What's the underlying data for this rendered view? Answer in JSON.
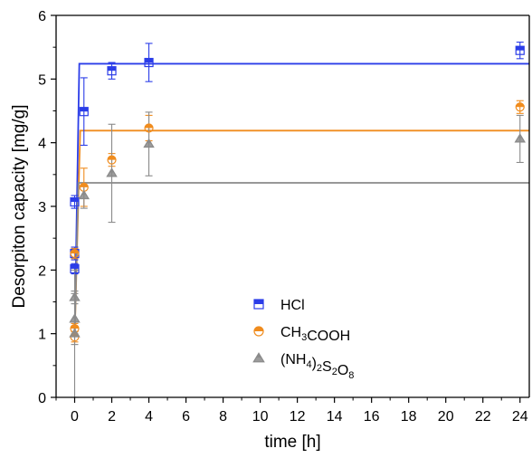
{
  "chart_data": {
    "type": "scatter",
    "title": "",
    "xlabel": "time [h]",
    "ylabel": "Desorpiton capacity [mg/g]",
    "xlim": [
      -1,
      24.5
    ],
    "ylim": [
      0,
      6
    ],
    "xticks": [
      0,
      2,
      4,
      6,
      8,
      10,
      12,
      14,
      16,
      18,
      20,
      22,
      24
    ],
    "yticks": [
      0,
      1,
      2,
      3,
      4,
      5,
      6
    ],
    "grid": false,
    "legend_placement": "bottom-center",
    "series": [
      {
        "name": "HCl",
        "legend_parts": [
          {
            "t": "HCl",
            "sub": false
          }
        ],
        "marker": "square",
        "color": "#2b3de8",
        "points": [
          {
            "x": 0,
            "y": 2.02,
            "err": 0.08
          },
          {
            "x": 0,
            "y": 2.26,
            "err": 0.1
          },
          {
            "x": 0,
            "y": 3.07,
            "err": 0.1
          },
          {
            "x": 0.5,
            "y": 4.49,
            "err": 0.53
          },
          {
            "x": 2,
            "y": 5.13,
            "err": 0.13
          },
          {
            "x": 4,
            "y": 5.26,
            "err": 0.3
          },
          {
            "x": 24,
            "y": 5.45,
            "err": 0.13
          }
        ],
        "fit": [
          {
            "x": 0,
            "y": 0.95
          },
          {
            "x": 0.25,
            "y": 5.24
          },
          {
            "x": 24.5,
            "y": 5.24
          }
        ]
      },
      {
        "name": "CH3COOH",
        "legend_parts": [
          {
            "t": "CH",
            "sub": false
          },
          {
            "t": "3",
            "sub": true
          },
          {
            "t": "COOH",
            "sub": false
          }
        ],
        "marker": "circle",
        "color": "#f08c1e",
        "points": [
          {
            "x": 0,
            "y": 0.95,
            "err": 0.08
          },
          {
            "x": 0,
            "y": 1.08,
            "err": 0.08
          },
          {
            "x": 0,
            "y": 2.26,
            "err": 0.08
          },
          {
            "x": 0.5,
            "y": 3.3,
            "err": 0.3
          },
          {
            "x": 2,
            "y": 3.73,
            "err": 0.1
          },
          {
            "x": 4,
            "y": 4.23,
            "err": 0.2
          },
          {
            "x": 24,
            "y": 4.56,
            "err": 0.1
          }
        ],
        "fit": [
          {
            "x": 0,
            "y": 0.95
          },
          {
            "x": 0.3,
            "y": 4.19
          },
          {
            "x": 24.5,
            "y": 4.19
          }
        ]
      },
      {
        "name": "(NH4)2S2O8",
        "legend_parts": [
          {
            "t": "(NH",
            "sub": false
          },
          {
            "t": "4",
            "sub": true
          },
          {
            "t": ")",
            "sub": false
          },
          {
            "t": "2",
            "sub": true
          },
          {
            "t": "S",
            "sub": false
          },
          {
            "t": "2",
            "sub": true
          },
          {
            "t": "O",
            "sub": false
          },
          {
            "t": "8",
            "sub": true
          }
        ],
        "marker": "triangle",
        "color": "#8a8a8a",
        "points": [
          {
            "x": 0,
            "y": 1.0,
            "err": 1.0
          },
          {
            "x": 0,
            "y": 1.23,
            "err": 0.4
          },
          {
            "x": 0,
            "y": 1.57,
            "err": 0.1
          },
          {
            "x": 0.5,
            "y": 3.17,
            "err": 0.2
          },
          {
            "x": 2,
            "y": 3.52,
            "err": 0.77
          },
          {
            "x": 4,
            "y": 3.98,
            "err": 0.5
          },
          {
            "x": 24,
            "y": 4.06,
            "err": 0.37
          }
        ],
        "fit": [
          {
            "x": 0,
            "y": 0.95
          },
          {
            "x": 0.2,
            "y": 3.37
          },
          {
            "x": 24.5,
            "y": 3.37
          }
        ]
      }
    ]
  }
}
